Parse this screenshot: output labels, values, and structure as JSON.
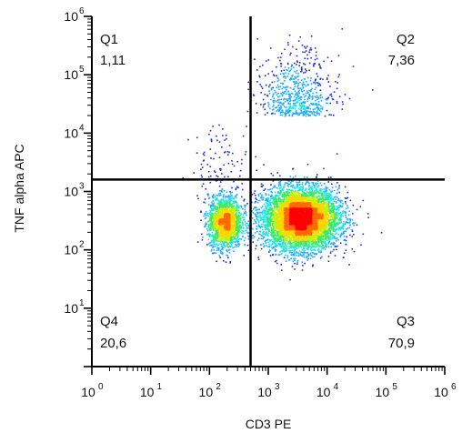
{
  "chart_data": {
    "type": "scatter",
    "title": "",
    "xlabel": "CD3 PE",
    "ylabel": "TNF alpha APC",
    "x_scale": "log",
    "y_scale": "log",
    "xlim": [
      1,
      1000000
    ],
    "ylim": [
      1,
      1000000
    ],
    "x_ticks": [
      {
        "base": "10",
        "exp": "0"
      },
      {
        "base": "10",
        "exp": "1"
      },
      {
        "base": "10",
        "exp": "2"
      },
      {
        "base": "10",
        "exp": "3"
      },
      {
        "base": "10",
        "exp": "4"
      },
      {
        "base": "10",
        "exp": "5"
      },
      {
        "base": "10",
        "exp": "6"
      }
    ],
    "y_ticks": [
      {
        "base": "10",
        "exp": "1"
      },
      {
        "base": "10",
        "exp": "2"
      },
      {
        "base": "10",
        "exp": "3"
      },
      {
        "base": "10",
        "exp": "4"
      },
      {
        "base": "10",
        "exp": "5"
      },
      {
        "base": "10",
        "exp": "6"
      }
    ],
    "gates": {
      "x": 500,
      "y": 1600
    },
    "quadrants": [
      {
        "name": "Q1",
        "percent": "1,11"
      },
      {
        "name": "Q2",
        "percent": "7,36"
      },
      {
        "name": "Q3",
        "percent": "70,9"
      },
      {
        "name": "Q4",
        "percent": "20,6"
      }
    ],
    "populations": [
      {
        "center_x": 3500,
        "center_y": 350,
        "share": 0.709,
        "color": "#ff0000"
      },
      {
        "center_x": 180,
        "center_y": 300,
        "share": 0.206,
        "color": "#ff0000"
      },
      {
        "center_x": 3000,
        "center_y": 20000,
        "share": 0.0736,
        "color": "#1c2bd6"
      },
      {
        "center_x": 150,
        "center_y": 3000,
        "share": 0.0111,
        "color": "#1c2bd6"
      }
    ],
    "density_colors": [
      "#1c2bd6",
      "#1faaff",
      "#18e6e6",
      "#3ee86b",
      "#c8f000",
      "#ffd400",
      "#ff6a00",
      "#ff0000"
    ]
  }
}
